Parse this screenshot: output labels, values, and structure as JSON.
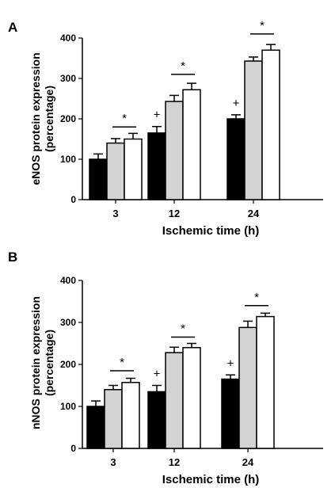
{
  "chart_data": [
    {
      "type": "bar",
      "panel_label": "A",
      "ylabel": "eNOS protein expression\n(percentage)",
      "xlabel": "Ischemic time (h)",
      "ylim": [
        0,
        400
      ],
      "yticks": [
        0,
        100,
        200,
        300,
        400
      ],
      "categories": [
        "3",
        "12",
        "24"
      ],
      "series": [
        {
          "color": "#000000",
          "values": [
            100,
            165,
            200
          ],
          "errors": [
            13,
            16,
            10
          ]
        },
        {
          "color": "#d3d3d3",
          "values": [
            140,
            243,
            343
          ],
          "errors": [
            11,
            15,
            10
          ]
        },
        {
          "color": "#ffffff",
          "values": [
            150,
            272,
            370
          ],
          "errors": [
            14,
            16,
            14
          ]
        }
      ],
      "plus_marks": [
        null,
        "+",
        "+"
      ],
      "sig_marks": [
        {
          "category": 0,
          "value": 180,
          "label": "*"
        },
        {
          "category": 1,
          "value": 310,
          "label": "*"
        },
        {
          "category": 2,
          "value": 410,
          "label": "*"
        }
      ],
      "legend": "none",
      "grid": false
    },
    {
      "type": "bar",
      "panel_label": "B",
      "ylabel": "nNOS protein expression\n(percentage)",
      "xlabel": "Ischemic time (h)",
      "ylim": [
        0,
        400
      ],
      "yticks": [
        0,
        100,
        200,
        300,
        400
      ],
      "categories": [
        "3",
        "12",
        "24"
      ],
      "series": [
        {
          "color": "#000000",
          "values": [
            100,
            135,
            165
          ],
          "errors": [
            13,
            15,
            10
          ]
        },
        {
          "color": "#d3d3d3",
          "values": [
            140,
            228,
            288
          ],
          "errors": [
            10,
            13,
            15
          ]
        },
        {
          "color": "#ffffff",
          "values": [
            157,
            240,
            314
          ],
          "errors": [
            10,
            10,
            8
          ]
        }
      ],
      "plus_marks": [
        null,
        "+",
        "+"
      ],
      "sig_marks": [
        {
          "category": 0,
          "value": 185,
          "label": "*"
        },
        {
          "category": 1,
          "value": 265,
          "label": "*"
        },
        {
          "category": 2,
          "value": 340,
          "label": "*"
        }
      ],
      "legend": "none",
      "grid": false
    }
  ]
}
